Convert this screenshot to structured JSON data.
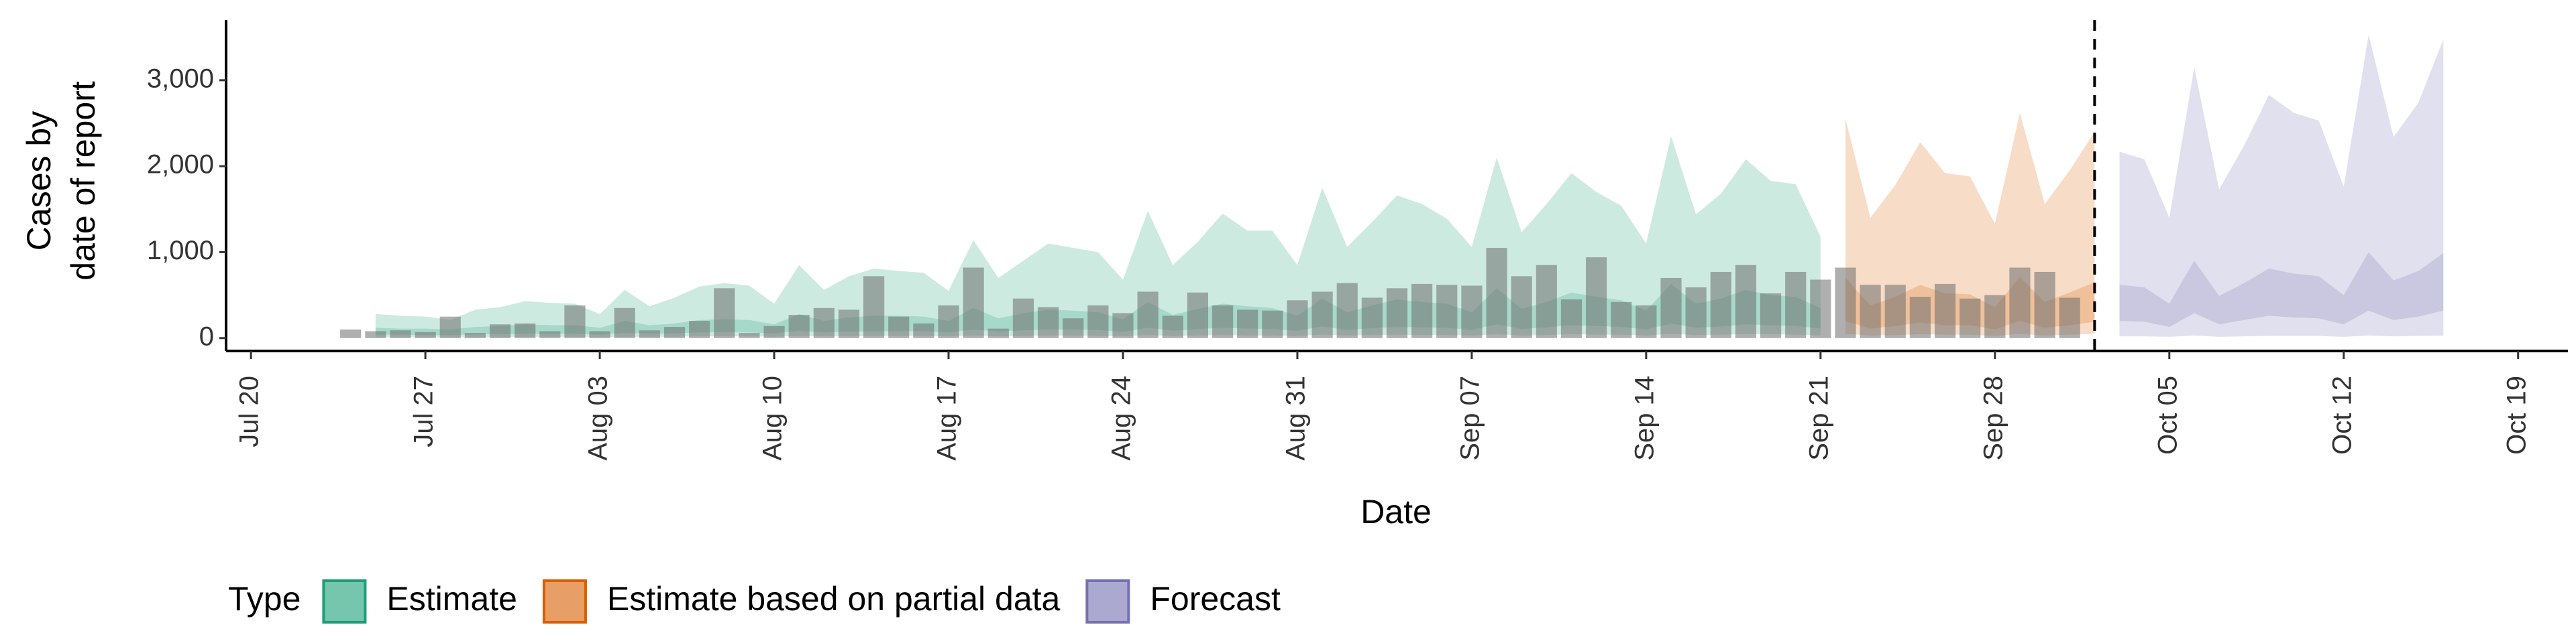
{
  "chart_data": {
    "type": "area",
    "xlabel": "Date",
    "ylabel": [
      "Cases by",
      "date of report"
    ],
    "legend_title": "Type",
    "legend": "bottom",
    "xlim": [
      "Jul 19",
      "Oct 21"
    ],
    "xticks": [
      "Jul 20",
      "Jul 27",
      "Aug 03",
      "Aug 10",
      "Aug 17",
      "Aug 24",
      "Aug 31",
      "Sep 07",
      "Sep 14",
      "Sep 21",
      "Sep 28",
      "Oct 05",
      "Oct 12",
      "Oct 19"
    ],
    "ylim": [
      -150,
      3700
    ],
    "yticks": [
      0,
      {
        "value": 1000,
        "label": "1,000"
      },
      {
        "value": 2000,
        "label": "2,000"
      },
      {
        "value": 3000,
        "label": "3,000"
      }
    ],
    "vline": "Oct 02",
    "bars": {
      "color": "#6e6e6e",
      "x": [
        "Jul 24",
        "Jul 25",
        "Jul 26",
        "Jul 27",
        "Jul 28",
        "Jul 29",
        "Jul 30",
        "Jul 31",
        "Aug 01",
        "Aug 02",
        "Aug 03",
        "Aug 04",
        "Aug 05",
        "Aug 06",
        "Aug 07",
        "Aug 08",
        "Aug 09",
        "Aug 10",
        "Aug 11",
        "Aug 12",
        "Aug 13",
        "Aug 14",
        "Aug 15",
        "Aug 16",
        "Aug 17",
        "Aug 18",
        "Aug 19",
        "Aug 20",
        "Aug 21",
        "Aug 22",
        "Aug 23",
        "Aug 24",
        "Aug 25",
        "Aug 26",
        "Aug 27",
        "Aug 28",
        "Aug 29",
        "Aug 30",
        "Aug 31",
        "Sep 01",
        "Sep 02",
        "Sep 03",
        "Sep 04",
        "Sep 05",
        "Sep 06",
        "Sep 07",
        "Sep 08",
        "Sep 09",
        "Sep 10",
        "Sep 11",
        "Sep 12",
        "Sep 13",
        "Sep 14",
        "Sep 15",
        "Sep 16",
        "Sep 17",
        "Sep 18",
        "Sep 19",
        "Sep 20",
        "Sep 21",
        "Sep 22",
        "Sep 23",
        "Sep 24",
        "Sep 25",
        "Sep 26",
        "Sep 27",
        "Sep 28",
        "Sep 29",
        "Sep 30",
        "Oct 01"
      ],
      "values": [
        100,
        80,
        90,
        70,
        250,
        60,
        160,
        170,
        80,
        380,
        80,
        350,
        90,
        130,
        200,
        580,
        60,
        140,
        270,
        350,
        330,
        720,
        250,
        170,
        380,
        820,
        110,
        460,
        360,
        230,
        380,
        290,
        540,
        260,
        530,
        380,
        330,
        320,
        440,
        540,
        640,
        470,
        580,
        630,
        620,
        610,
        1050,
        720,
        850,
        450,
        940,
        420,
        380,
        700,
        590,
        770,
        850,
        520,
        770,
        680,
        820,
        620,
        620,
        480,
        630,
        460,
        500,
        820,
        770,
        470
      ]
    },
    "series": [
      {
        "name": "Estimate",
        "color": "#1b9e77",
        "x": [
          "Jul 25",
          "Jul 26",
          "Jul 27",
          "Jul 28",
          "Jul 29",
          "Jul 30",
          "Jul 31",
          "Aug 01",
          "Aug 02",
          "Aug 03",
          "Aug 04",
          "Aug 05",
          "Aug 06",
          "Aug 07",
          "Aug 08",
          "Aug 09",
          "Aug 10",
          "Aug 11",
          "Aug 12",
          "Aug 13",
          "Aug 14",
          "Aug 15",
          "Aug 16",
          "Aug 17",
          "Aug 18",
          "Aug 19",
          "Aug 20",
          "Aug 21",
          "Aug 22",
          "Aug 23",
          "Aug 24",
          "Aug 25",
          "Aug 26",
          "Aug 27",
          "Aug 28",
          "Aug 29",
          "Aug 30",
          "Aug 31",
          "Sep 01",
          "Sep 02",
          "Sep 03",
          "Sep 04",
          "Sep 05",
          "Sep 06",
          "Sep 07",
          "Sep 08",
          "Sep 09",
          "Sep 10",
          "Sep 11",
          "Sep 12",
          "Sep 13",
          "Sep 14",
          "Sep 15",
          "Sep 16",
          "Sep 17",
          "Sep 18",
          "Sep 19",
          "Sep 20",
          "Sep 21"
        ],
        "upper_90": [
          280,
          260,
          250,
          210,
          330,
          360,
          430,
          410,
          400,
          280,
          560,
          370,
          470,
          600,
          640,
          610,
          400,
          850,
          560,
          720,
          810,
          780,
          760,
          550,
          1140,
          700,
          900,
          1100,
          1050,
          1000,
          680,
          1480,
          850,
          1120,
          1450,
          1250,
          1250,
          850,
          1750,
          1060,
          1350,
          1660,
          1560,
          1390,
          1060,
          2100,
          1230,
          1560,
          1920,
          1700,
          1540,
          1100,
          2350,
          1440,
          1680,
          2080,
          1830,
          1790,
          1180
        ],
        "lower_90": [
          10,
          10,
          10,
          10,
          10,
          10,
          15,
          15,
          15,
          10,
          15,
          15,
          15,
          20,
          20,
          20,
          15,
          25,
          20,
          20,
          25,
          25,
          25,
          20,
          30,
          20,
          25,
          30,
          30,
          25,
          20,
          35,
          25,
          30,
          35,
          30,
          30,
          25,
          40,
          30,
          35,
          40,
          35,
          35,
          30,
          45,
          30,
          35,
          45,
          40,
          40,
          30,
          50,
          35,
          40,
          45,
          45,
          40,
          30
        ],
        "upper_50": [
          120,
          110,
          110,
          100,
          130,
          140,
          160,
          150,
          150,
          120,
          200,
          150,
          170,
          210,
          220,
          210,
          160,
          280,
          200,
          240,
          260,
          260,
          250,
          200,
          350,
          230,
          290,
          330,
          320,
          300,
          220,
          420,
          270,
          340,
          400,
          370,
          350,
          260,
          460,
          300,
          380,
          450,
          420,
          400,
          300,
          580,
          340,
          420,
          530,
          480,
          440,
          320,
          630,
          400,
          460,
          560,
          500,
          480,
          350
        ],
        "lower_50": [
          40,
          40,
          35,
          35,
          45,
          45,
          50,
          50,
          50,
          40,
          60,
          50,
          55,
          65,
          70,
          65,
          55,
          85,
          65,
          75,
          80,
          80,
          80,
          65,
          100,
          75,
          90,
          100,
          100,
          95,
          70,
          120,
          85,
          105,
          120,
          110,
          105,
          85,
          135,
          95,
          115,
          130,
          125,
          120,
          95,
          160,
          105,
          125,
          150,
          140,
          130,
          100,
          170,
          120,
          135,
          160,
          150,
          140,
          110
        ]
      },
      {
        "name": "Estimate based on partial data",
        "color": "#d95f02",
        "x": [
          "Sep 22",
          "Sep 23",
          "Sep 24",
          "Sep 25",
          "Sep 26",
          "Sep 27",
          "Sep 28",
          "Sep 29",
          "Sep 30",
          "Oct 01",
          "Oct 02"
        ],
        "upper_90": [
          2550,
          1400,
          1780,
          2280,
          1920,
          1880,
          1330,
          2620,
          1560,
          1950,
          2400
        ],
        "lower_90": [
          50,
          30,
          35,
          45,
          40,
          40,
          25,
          50,
          30,
          40,
          50
        ],
        "upper_50": [
          700,
          380,
          480,
          620,
          520,
          510,
          360,
          710,
          420,
          530,
          650
        ],
        "lower_50": [
          200,
          110,
          140,
          180,
          150,
          150,
          100,
          200,
          120,
          150,
          190
        ]
      },
      {
        "name": "Forecast",
        "color": "#7570b3",
        "x": [
          "Oct 03",
          "Oct 04",
          "Oct 05",
          "Oct 06",
          "Oct 07",
          "Oct 08",
          "Oct 09",
          "Oct 10",
          "Oct 11",
          "Oct 12",
          "Oct 13",
          "Oct 14",
          "Oct 15",
          "Oct 16"
        ],
        "upper_90": [
          2170,
          2080,
          1400,
          3150,
          1730,
          2240,
          2830,
          2620,
          2530,
          1760,
          3530,
          2340,
          2740,
          3480
        ],
        "lower_90": [
          20,
          20,
          15,
          30,
          15,
          20,
          25,
          25,
          25,
          15,
          30,
          20,
          25,
          30
        ],
        "upper_50": [
          620,
          590,
          400,
          900,
          490,
          640,
          810,
          750,
          720,
          500,
          1000,
          670,
          780,
          990
        ],
        "lower_50": [
          200,
          190,
          130,
          290,
          160,
          210,
          260,
          240,
          230,
          160,
          320,
          210,
          250,
          320
        ]
      }
    ]
  }
}
